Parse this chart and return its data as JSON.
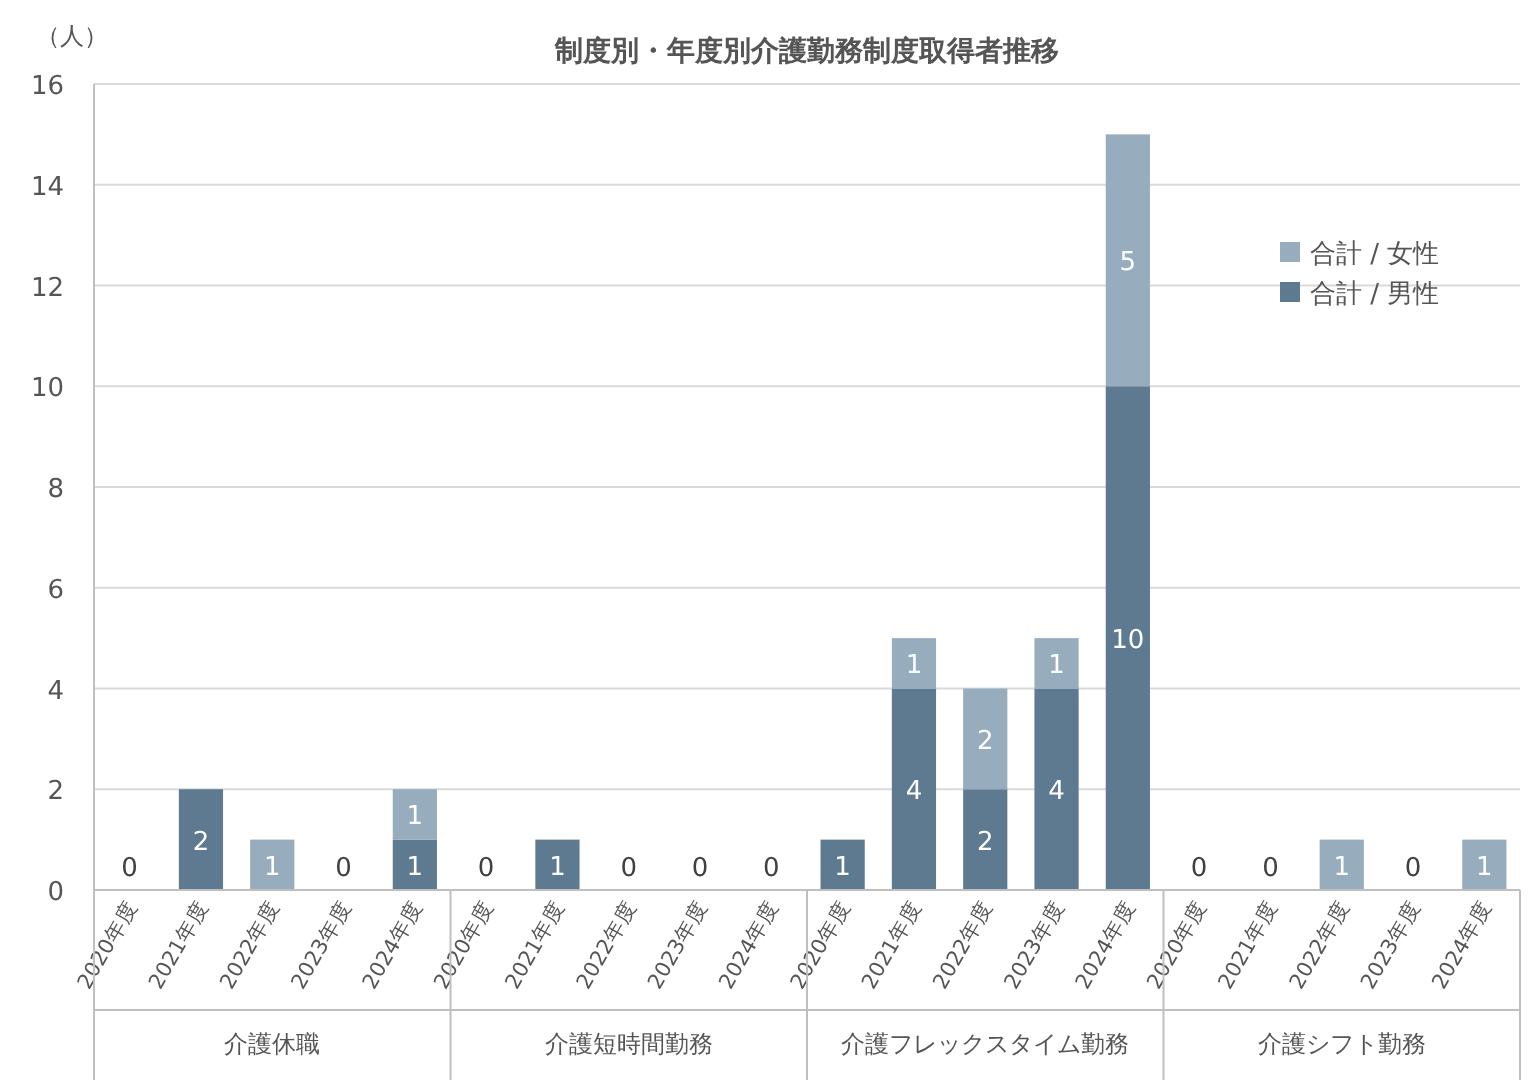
{
  "chart_data": {
    "type": "bar",
    "title": "制度別・年度別介護勤務制度取得者推移",
    "ylabel": "（人）",
    "categories": [
      "2020年度",
      "2021年度",
      "2022年度",
      "2023年度",
      "2024年度",
      "2020年度",
      "2021年度",
      "2022年度",
      "2023年度",
      "2024年度",
      "2020年度",
      "2021年度",
      "2022年度",
      "2023年度",
      "2024年度",
      "2020年度",
      "2021年度",
      "2022年度",
      "2023年度",
      "2024年度"
    ],
    "annotations": [
      "介護休職",
      "介護短時間勤務",
      "介護フレックスタイム勤務",
      "介護シフト勤務"
    ],
    "stacked": true,
    "legend": "top right",
    "grid": "y",
    "ylim": [
      0,
      16
    ],
    "yticks": [
      0,
      2,
      4,
      6,
      8,
      10,
      12,
      14,
      16
    ],
    "series": [
      {
        "name": "合計 / 男性",
        "color": "#5e7a91",
        "values": [
          0,
          2,
          0,
          0,
          1,
          0,
          1,
          0,
          0,
          0,
          1,
          4,
          2,
          4,
          10,
          0,
          0,
          0,
          0,
          0
        ],
        "value_labels": [
          "0",
          "2",
          null,
          "0",
          "1",
          "0",
          "1",
          "0",
          "0",
          "0",
          "1",
          "4",
          "2",
          "4",
          "10",
          "0",
          "0",
          null,
          "0",
          null
        ]
      },
      {
        "name": "合計 / 女性",
        "color": "#97adbd",
        "values": [
          0,
          0,
          1,
          0,
          1,
          0,
          0,
          0,
          0,
          0,
          0,
          1,
          2,
          1,
          5,
          0,
          0,
          1,
          0,
          1
        ],
        "value_labels": [
          null,
          null,
          "1",
          null,
          "1",
          null,
          null,
          null,
          null,
          null,
          null,
          "1",
          "2",
          "1",
          "5",
          null,
          null,
          "1",
          null,
          "1"
        ]
      }
    ]
  }
}
